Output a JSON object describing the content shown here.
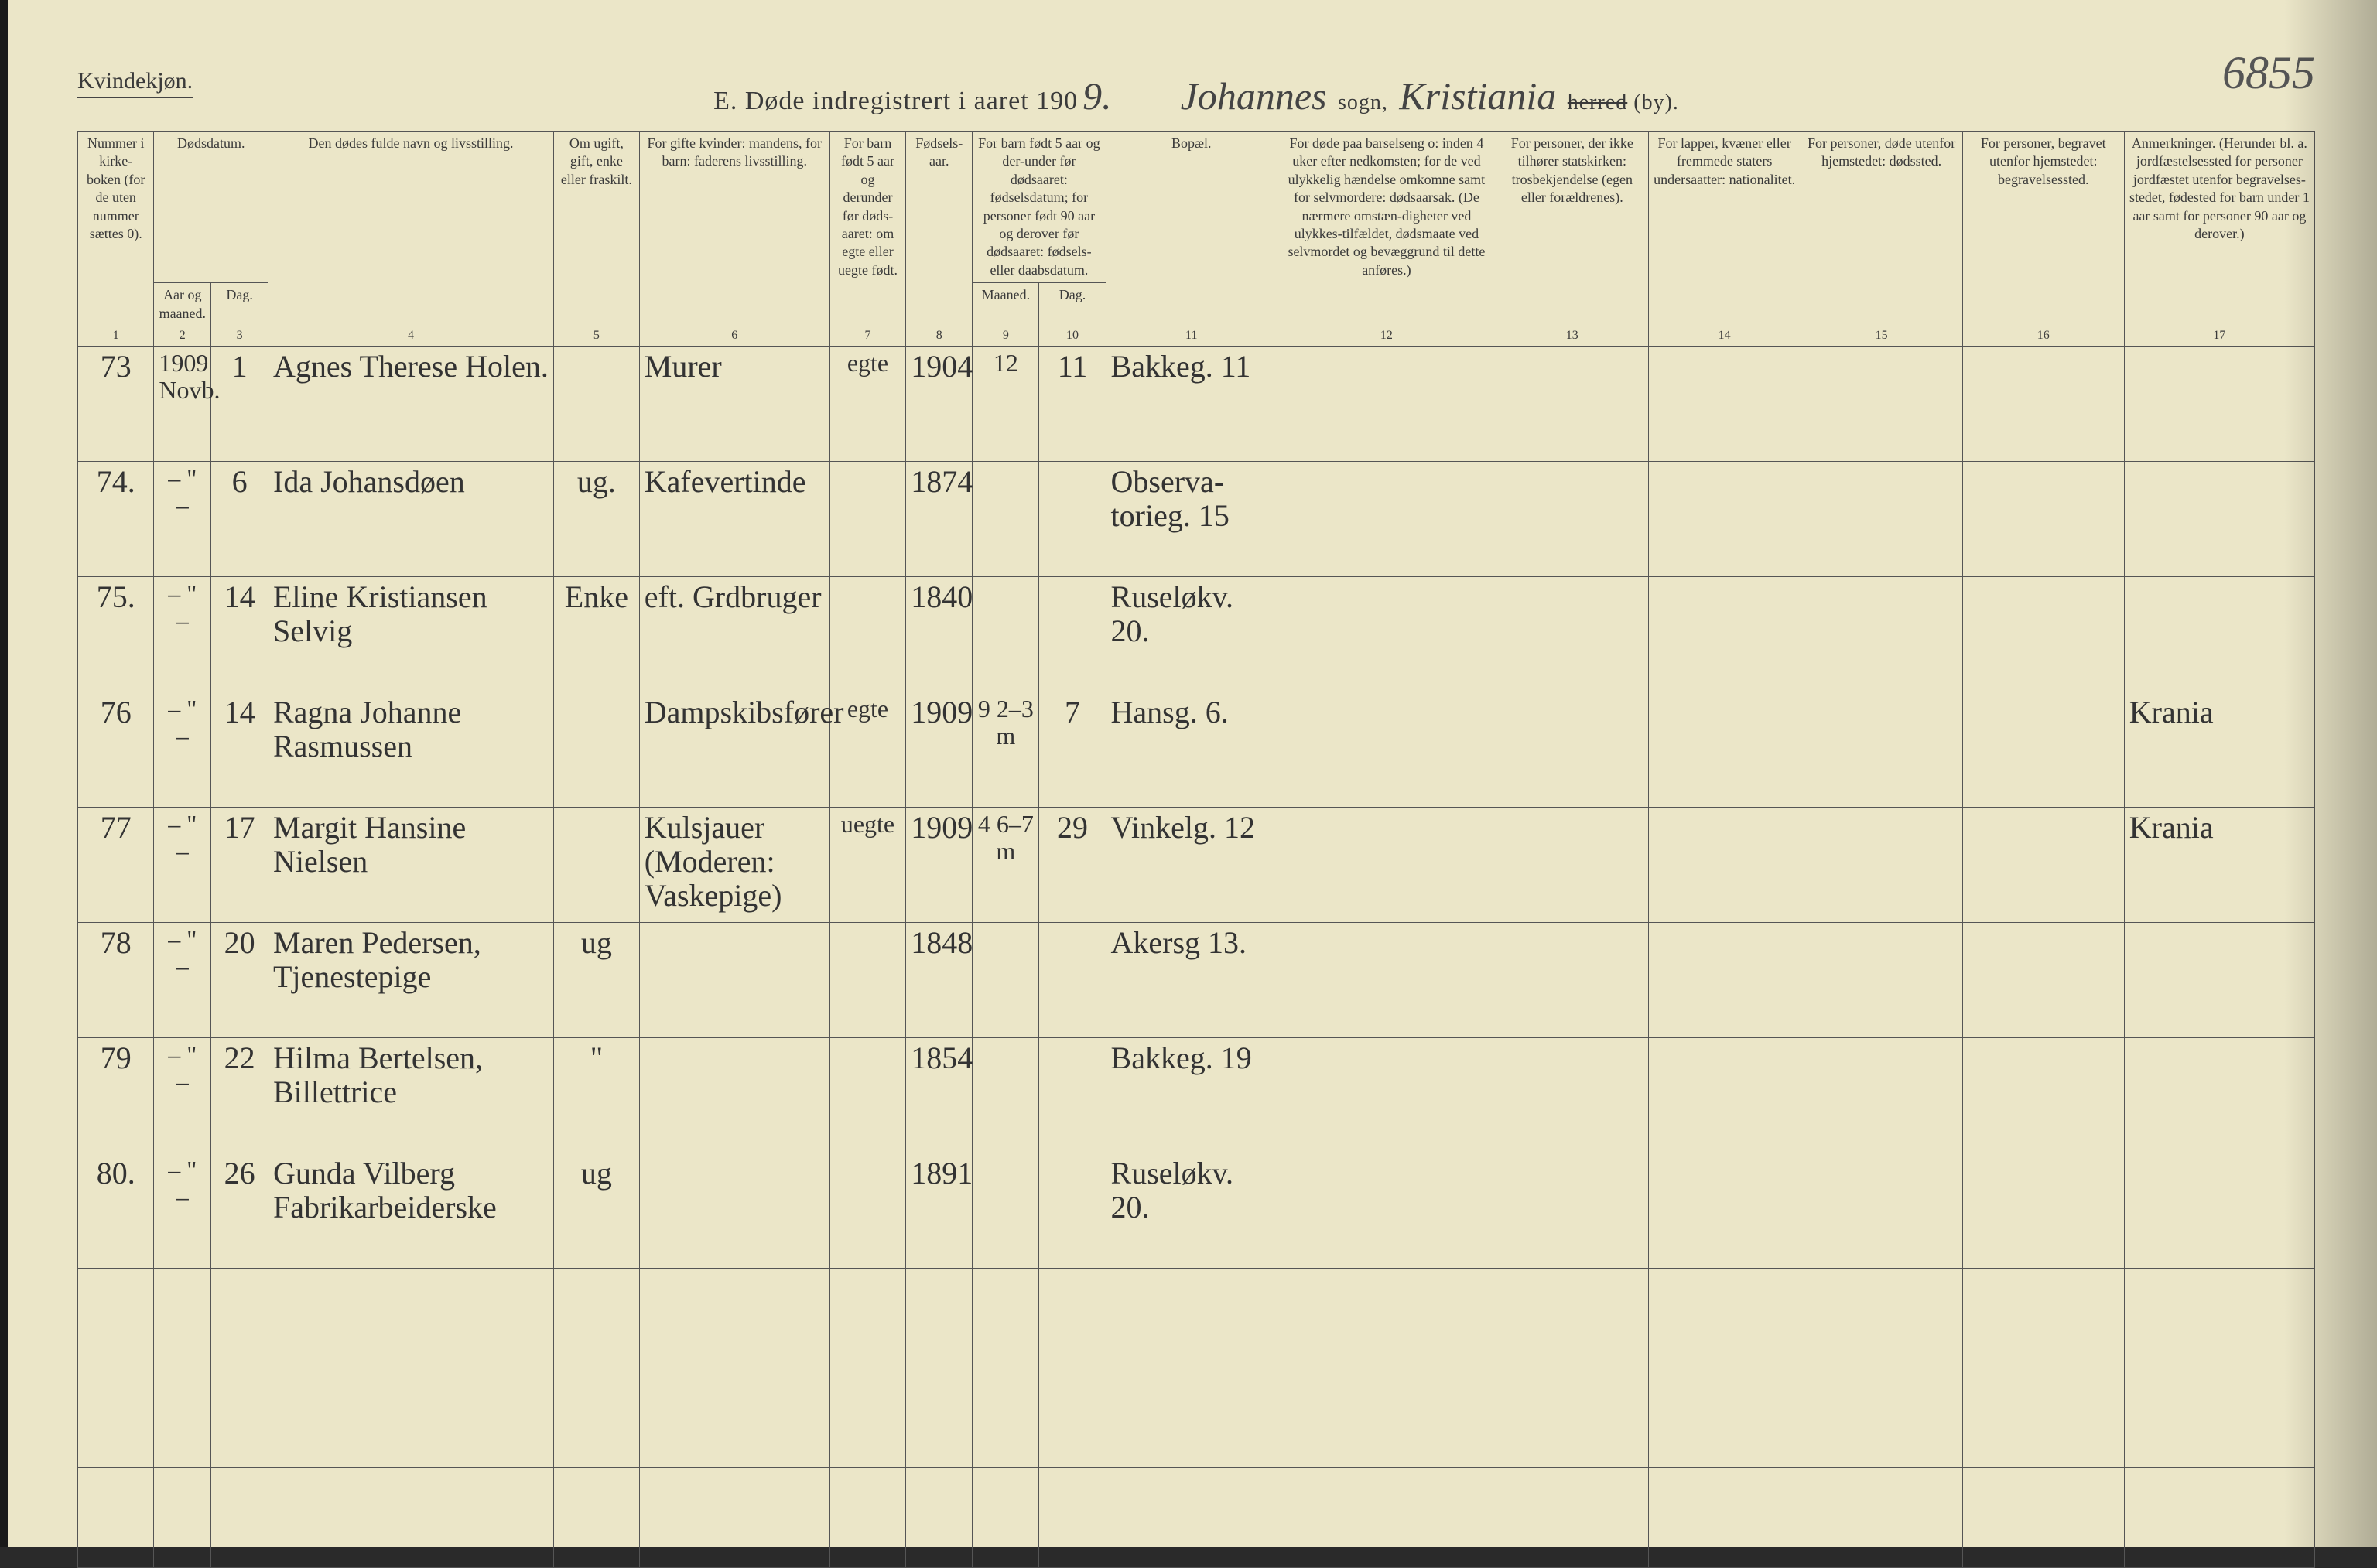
{
  "meta": {
    "gender_heading": "Kvindekjøn.",
    "page_number_hand": "6855",
    "title_prefix": "E.  Døde indregistrert i aaret 190",
    "title_year_fill": "9.",
    "sogn_hand": "Johannes",
    "sogn_label": "sogn,",
    "herred_hand": "Kristiania",
    "herred_struck": "herred",
    "by_label": "(by)."
  },
  "columns": {
    "1": "Nummer i kirke-boken (for de uten nummer sættes 0).",
    "2_group": "Dødsdatum.",
    "2": "Aar og maaned.",
    "3": "Dag.",
    "4": "Den dødes fulde navn og livsstilling.",
    "5": "Om ugift, gift, enke eller fraskilt.",
    "6": "For gifte kvinder: mandens, for barn: faderens livsstilling.",
    "7": "For barn født 5 aar og derunder før døds-aaret: om egte eller uegte født.",
    "8": "Fødsels-aar.",
    "9_group": "For barn født 5 aar og der-under før dødsaaret: fødselsdatum; for personer født 90 aar og derover før dødsaaret: fødsels- eller daabsdatum.",
    "9": "Maaned.",
    "10": "Dag.",
    "11": "Bopæl.",
    "12": "For døde paa barselseng o: inden 4 uker efter nedkomsten; for de ved ulykkelig hændelse omkomne samt for selvmordere: dødsaarsak. (De nærmere omstæn-digheter ved ulykkes-tilfældet, dødsmaate ved selvmordet og bevæggrund til dette anføres.)",
    "13": "For personer, der ikke tilhører statskirken: trosbekjendelse (egen eller forældrenes).",
    "14": "For lapper, kvæner eller fremmede staters undersaatter: nationalitet.",
    "15": "For personer, døde utenfor hjemstedet: dødssted.",
    "16": "For personer, begravet utenfor hjemstedet: begravelsessted.",
    "17": "Anmerkninger. (Herunder bl. a. jordfæstelsessted for personer jordfæstet utenfor begravelses-stedet, fødested for barn under 1 aar samt for personer 90 aar og derover.)"
  },
  "colnums": [
    "1",
    "2",
    "3",
    "4",
    "5",
    "6",
    "7",
    "8",
    "9",
    "10",
    "11",
    "12",
    "13",
    "14",
    "15",
    "16",
    "17"
  ],
  "rows": [
    {
      "num": "73",
      "year_month": "1909 Novb.",
      "day": "1",
      "name": "Agnes Therese Holen.",
      "status": "",
      "occupation": "Murer",
      "legit": "egte",
      "birth_year": "1904",
      "b_month": "12",
      "b_day": "11",
      "residence": "Bakkeg. 11",
      "c12": "",
      "c13": "",
      "c14": "",
      "c15": "",
      "c16": "",
      "remarks": ""
    },
    {
      "num": "74.",
      "year_month": "– \" –",
      "day": "6",
      "name": "Ida Johansdøen",
      "status": "ug.",
      "occupation": "Kafevertinde",
      "legit": "",
      "birth_year": "1874",
      "b_month": "",
      "b_day": "",
      "residence": "Observa-torieg. 15",
      "c12": "",
      "c13": "",
      "c14": "",
      "c15": "",
      "c16": "",
      "remarks": ""
    },
    {
      "num": "75.",
      "year_month": "– \" –",
      "day": "14",
      "name": "Eline Kristiansen Selvig",
      "status": "Enke",
      "occupation": "eft. Grdbruger",
      "legit": "",
      "birth_year": "1840",
      "b_month": "",
      "b_day": "",
      "residence": "Ruseløkv. 20.",
      "c12": "",
      "c13": "",
      "c14": "",
      "c15": "",
      "c16": "",
      "remarks": ""
    },
    {
      "num": "76",
      "year_month": "– \" –",
      "day": "14",
      "name": "Ragna Johanne Rasmussen",
      "status": "",
      "occupation": "Dampskibsfører",
      "legit": "egte",
      "birth_year": "1909",
      "b_month": "9  2–3 m",
      "b_day": "7",
      "residence": "Hansg. 6.",
      "c12": "",
      "c13": "",
      "c14": "",
      "c15": "",
      "c16": "",
      "remarks": "Krania"
    },
    {
      "num": "77",
      "year_month": "– \" –",
      "day": "17",
      "name": "Margit Hansine Nielsen",
      "status": "",
      "occupation": "Kulsjauer (Moderen: Vaskepige)",
      "legit": "uegte",
      "birth_year": "1909",
      "b_month": "4  6–7 m",
      "b_day": "29",
      "residence": "Vinkelg. 12",
      "c12": "",
      "c13": "",
      "c14": "",
      "c15": "",
      "c16": "",
      "remarks": "Krania"
    },
    {
      "num": "78",
      "year_month": "– \" –",
      "day": "20",
      "name": "Maren Pedersen, Tjenestepige",
      "status": "ug",
      "occupation": "",
      "legit": "",
      "birth_year": "1848",
      "b_month": "",
      "b_day": "",
      "residence": "Akersg 13.",
      "c12": "",
      "c13": "",
      "c14": "",
      "c15": "",
      "c16": "",
      "remarks": ""
    },
    {
      "num": "79",
      "year_month": "– \" –",
      "day": "22",
      "name": "Hilma Bertelsen, Billettrice",
      "status": "\"",
      "occupation": "",
      "legit": "",
      "birth_year": "1854",
      "b_month": "",
      "b_day": "",
      "residence": "Bakkeg. 19",
      "c12": "",
      "c13": "",
      "c14": "",
      "c15": "",
      "c16": "",
      "remarks": ""
    },
    {
      "num": "80.",
      "year_month": "– \" –",
      "day": "26",
      "name": "Gunda Vilberg Fabrikarbeiderske",
      "status": "ug",
      "occupation": "",
      "legit": "",
      "birth_year": "1891",
      "b_month": "",
      "b_day": "",
      "residence": "Ruseløkv. 20.",
      "c12": "",
      "c13": "",
      "c14": "",
      "c15": "",
      "c16": "",
      "remarks": ""
    }
  ],
  "style": {
    "page_bg": "#ebe6c8",
    "ink": "#3a3a3a",
    "border": "#555",
    "script_font": "Brush Script MT",
    "print_font": "Georgia",
    "header_fontsize_pt": 13,
    "body_fontsize_pt": 30,
    "title_fontsize_pt": 26,
    "empty_rows_at_bottom": 3
  }
}
